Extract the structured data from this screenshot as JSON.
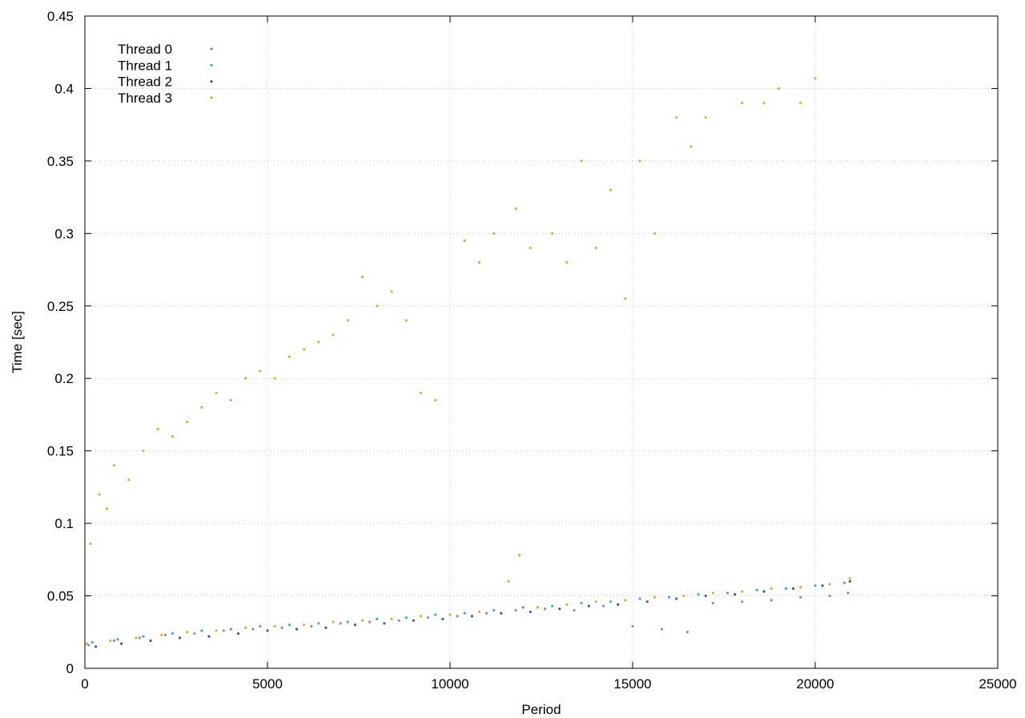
{
  "chart_data": {
    "type": "scatter",
    "title": "",
    "xlabel": "Period",
    "ylabel": "Time [sec]",
    "xlim": [
      0,
      25000
    ],
    "ylim": [
      0,
      0.45
    ],
    "xticks": [
      0,
      5000,
      10000,
      15000,
      20000,
      25000
    ],
    "yticks": [
      0,
      0.05,
      0.1,
      0.15,
      0.2,
      0.25,
      0.3,
      0.35,
      0.4,
      0.45
    ],
    "xtick_labels": [
      "0",
      "5000",
      "10000",
      "15000",
      "20000",
      "25000"
    ],
    "ytick_labels": [
      "0",
      "0.05",
      "0.1",
      "0.15",
      "0.2",
      "0.25",
      "0.3",
      "0.35",
      "0.4",
      "0.45"
    ],
    "grid": true,
    "legend_position": "top-left",
    "series": [
      {
        "name": "Thread 0",
        "color": "#9467bd",
        "points": [
          [
            100,
            0.016
          ],
          [
            800,
            0.019
          ],
          [
            1500,
            0.021
          ],
          [
            2200,
            0.023
          ],
          [
            3000,
            0.024
          ],
          [
            3800,
            0.026
          ],
          [
            4600,
            0.027
          ],
          [
            5400,
            0.028
          ],
          [
            6200,
            0.029
          ],
          [
            7000,
            0.031
          ],
          [
            7800,
            0.032
          ],
          [
            8600,
            0.033
          ],
          [
            9400,
            0.035
          ],
          [
            10200,
            0.036
          ],
          [
            11000,
            0.038
          ],
          [
            11800,
            0.04
          ],
          [
            12600,
            0.041
          ],
          [
            13400,
            0.04
          ],
          [
            14200,
            0.043
          ],
          [
            15000,
            0.029
          ],
          [
            15800,
            0.027
          ],
          [
            16500,
            0.025
          ],
          [
            17200,
            0.045
          ],
          [
            18000,
            0.046
          ],
          [
            18800,
            0.047
          ],
          [
            19600,
            0.049
          ],
          [
            20400,
            0.05
          ],
          [
            20900,
            0.052
          ]
        ]
      },
      {
        "name": "Thread 1",
        "color": "#17a2b8",
        "points": [
          [
            200,
            0.018
          ],
          [
            900,
            0.02
          ],
          [
            1600,
            0.022
          ],
          [
            2400,
            0.024
          ],
          [
            3200,
            0.026
          ],
          [
            4000,
            0.027
          ],
          [
            4800,
            0.029
          ],
          [
            5600,
            0.03
          ],
          [
            6400,
            0.031
          ],
          [
            7200,
            0.032
          ],
          [
            8000,
            0.034
          ],
          [
            8800,
            0.035
          ],
          [
            9600,
            0.037
          ],
          [
            10400,
            0.038
          ],
          [
            11200,
            0.04
          ],
          [
            12000,
            0.042
          ],
          [
            12800,
            0.043
          ],
          [
            13600,
            0.045
          ],
          [
            14400,
            0.046
          ],
          [
            15200,
            0.048
          ],
          [
            16000,
            0.049
          ],
          [
            16800,
            0.051
          ],
          [
            17600,
            0.052
          ],
          [
            18400,
            0.054
          ],
          [
            19200,
            0.055
          ],
          [
            20000,
            0.057
          ],
          [
            20800,
            0.059
          ]
        ]
      },
      {
        "name": "Thread 2",
        "color": "#1f3c88",
        "points": [
          [
            300,
            0.015
          ],
          [
            1000,
            0.017
          ],
          [
            1800,
            0.019
          ],
          [
            2600,
            0.021
          ],
          [
            3400,
            0.022
          ],
          [
            4200,
            0.024
          ],
          [
            5000,
            0.026
          ],
          [
            5800,
            0.027
          ],
          [
            6600,
            0.028
          ],
          [
            7400,
            0.03
          ],
          [
            8200,
            0.031
          ],
          [
            9000,
            0.033
          ],
          [
            9800,
            0.034
          ],
          [
            10600,
            0.036
          ],
          [
            11400,
            0.038
          ],
          [
            12200,
            0.039
          ],
          [
            13000,
            0.041
          ],
          [
            13800,
            0.043
          ],
          [
            14600,
            0.044
          ],
          [
            15400,
            0.046
          ],
          [
            16200,
            0.048
          ],
          [
            17000,
            0.05
          ],
          [
            17800,
            0.051
          ],
          [
            18600,
            0.053
          ],
          [
            19400,
            0.055
          ],
          [
            20200,
            0.057
          ],
          [
            20950,
            0.06
          ]
        ]
      },
      {
        "name": "Thread 3",
        "color": "#d4a017",
        "points": [
          [
            50,
            0.017
          ],
          [
            700,
            0.019
          ],
          [
            1400,
            0.021
          ],
          [
            2100,
            0.023
          ],
          [
            2800,
            0.025
          ],
          [
            3600,
            0.026
          ],
          [
            4400,
            0.028
          ],
          [
            5200,
            0.029
          ],
          [
            6000,
            0.03
          ],
          [
            6800,
            0.032
          ],
          [
            7600,
            0.033
          ],
          [
            8400,
            0.034
          ],
          [
            9200,
            0.036
          ],
          [
            10000,
            0.037
          ],
          [
            10800,
            0.039
          ],
          [
            11600,
            0.06
          ],
          [
            11900,
            0.078
          ],
          [
            12400,
            0.042
          ],
          [
            13200,
            0.044
          ],
          [
            14000,
            0.046
          ],
          [
            14800,
            0.047
          ],
          [
            15600,
            0.049
          ],
          [
            16400,
            0.05
          ],
          [
            17200,
            0.052
          ],
          [
            18000,
            0.053
          ],
          [
            18800,
            0.055
          ],
          [
            19600,
            0.056
          ],
          [
            20400,
            0.058
          ],
          [
            20950,
            0.062
          ]
        ]
      }
    ],
    "outliers": {
      "color": "#d4a017",
      "points": [
        [
          150,
          0.086
        ],
        [
          400,
          0.12
        ],
        [
          600,
          0.11
        ],
        [
          800,
          0.14
        ],
        [
          1200,
          0.13
        ],
        [
          1600,
          0.15
        ],
        [
          2000,
          0.165
        ],
        [
          2400,
          0.16
        ],
        [
          2800,
          0.17
        ],
        [
          3200,
          0.18
        ],
        [
          3600,
          0.19
        ],
        [
          4000,
          0.185
        ],
        [
          4400,
          0.2
        ],
        [
          4800,
          0.205
        ],
        [
          5200,
          0.2
        ],
        [
          5600,
          0.215
        ],
        [
          6000,
          0.22
        ],
        [
          6400,
          0.225
        ],
        [
          6800,
          0.23
        ],
        [
          7200,
          0.24
        ],
        [
          7600,
          0.27
        ],
        [
          8000,
          0.25
        ],
        [
          8400,
          0.26
        ],
        [
          8800,
          0.24
        ],
        [
          9200,
          0.19
        ],
        [
          9600,
          0.185
        ],
        [
          10400,
          0.295
        ],
        [
          10800,
          0.28
        ],
        [
          11200,
          0.3
        ],
        [
          11800,
          0.317
        ],
        [
          12200,
          0.29
        ],
        [
          12800,
          0.3
        ],
        [
          13200,
          0.28
        ],
        [
          13600,
          0.35
        ],
        [
          14000,
          0.29
        ],
        [
          14400,
          0.33
        ],
        [
          14800,
          0.255
        ],
        [
          15200,
          0.35
        ],
        [
          15600,
          0.3
        ],
        [
          16200,
          0.38
        ],
        [
          16600,
          0.36
        ],
        [
          17000,
          0.38
        ],
        [
          18000,
          0.39
        ],
        [
          18600,
          0.39
        ],
        [
          19000,
          0.4
        ],
        [
          19600,
          0.39
        ],
        [
          20000,
          0.407
        ]
      ]
    }
  }
}
